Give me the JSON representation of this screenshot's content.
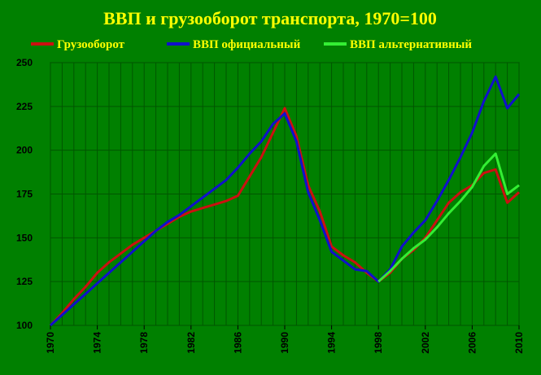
{
  "chart_data": {
    "type": "line",
    "title": "ВВП и грузооборот транспорта, 1970=100",
    "x": [
      1970,
      1971,
      1972,
      1973,
      1974,
      1975,
      1976,
      1977,
      1978,
      1979,
      1980,
      1981,
      1982,
      1983,
      1984,
      1985,
      1986,
      1987,
      1988,
      1989,
      1990,
      1991,
      1992,
      1993,
      1994,
      1995,
      1996,
      1997,
      1998,
      1999,
      2000,
      2001,
      2002,
      2003,
      2004,
      2005,
      2006,
      2007,
      2008,
      2009,
      2010
    ],
    "xlim": [
      1970,
      2010
    ],
    "xticks": [
      1970,
      1974,
      1978,
      1982,
      1986,
      1990,
      1994,
      1998,
      2002,
      2006,
      2010
    ],
    "ylim": [
      100,
      250
    ],
    "yticks": [
      100,
      125,
      150,
      175,
      200,
      225,
      250
    ],
    "grid": true,
    "series": [
      {
        "name": "Грузооборот",
        "color": "#cc1010",
        "values": [
          100,
          107,
          115,
          122,
          130,
          136,
          141,
          146,
          150,
          154,
          158,
          162,
          165,
          167,
          169,
          171,
          174,
          185,
          196,
          210,
          224,
          208,
          180,
          165,
          145,
          140,
          136,
          130,
          125,
          130,
          138,
          143,
          150,
          160,
          170,
          176,
          180,
          187,
          189,
          170,
          176
        ]
      },
      {
        "name": "ВВП официальный",
        "color": "#1010cc",
        "values": [
          100,
          106,
          112,
          118,
          124,
          130,
          136,
          142,
          148,
          154,
          159,
          163,
          168,
          173,
          178,
          183,
          190,
          198,
          205,
          215,
          221,
          205,
          176,
          160,
          142,
          137,
          132,
          131,
          125,
          132,
          145,
          153,
          160,
          171,
          183,
          196,
          210,
          228,
          242,
          224,
          232
        ]
      },
      {
        "name": "ВВП альтернативный",
        "color": "#33ee33",
        "values": [
          null,
          null,
          null,
          null,
          null,
          null,
          null,
          null,
          null,
          null,
          null,
          null,
          null,
          null,
          null,
          null,
          null,
          null,
          null,
          null,
          null,
          null,
          null,
          null,
          null,
          null,
          null,
          null,
          125,
          131,
          138,
          144,
          149,
          156,
          164,
          171,
          179,
          191,
          198,
          175,
          180
        ]
      }
    ]
  }
}
